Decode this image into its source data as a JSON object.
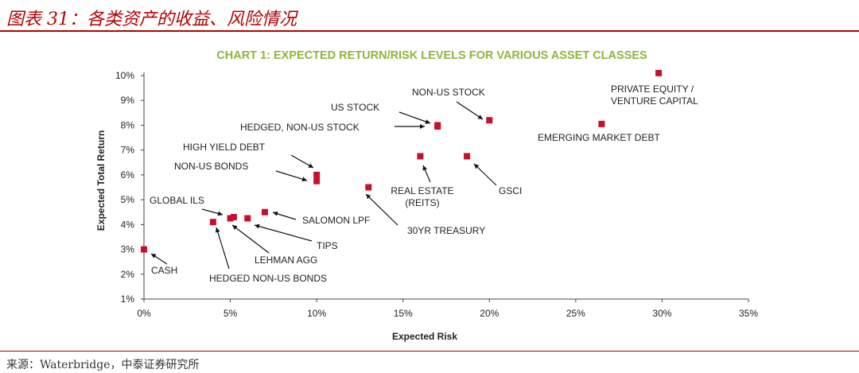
{
  "header": {
    "title": "图表 31：各类资产的收益、风险情况"
  },
  "footer": {
    "source": "来源：Waterbridge，中泰证券研究所"
  },
  "colors": {
    "accent_red": "#b30000",
    "title_green": "#8db63c",
    "marker": "#c8102e"
  },
  "chart_data": {
    "type": "scatter",
    "title": "CHART 1: EXPECTED RETURN/RISK LEVELS FOR VARIOUS ASSET CLASSES",
    "xlabel": "Expected Risk",
    "ylabel": "Expected Total Return",
    "xlim": [
      0,
      35
    ],
    "ylim": [
      1,
      10
    ],
    "x_ticks": [
      "0%",
      "5%",
      "10%",
      "15%",
      "20%",
      "25%",
      "30%",
      "35%"
    ],
    "y_ticks": [
      "1%",
      "2%",
      "3%",
      "4%",
      "5%",
      "6%",
      "7%",
      "8%",
      "9%",
      "10%"
    ],
    "grid": false,
    "points": [
      {
        "label": "CASH",
        "x": 0,
        "y": 3.0
      },
      {
        "label": "GLOBAL ILS",
        "x": 4.0,
        "y": 4.1
      },
      {
        "label": "HEDGED NON-US BONDS",
        "x": 5.0,
        "y": 4.25
      },
      {
        "label": "LEHMAN AGG",
        "x": 5.2,
        "y": 4.3
      },
      {
        "label": "TIPS",
        "x": 6.0,
        "y": 4.25
      },
      {
        "label": "SALOMON LPF",
        "x": 7.0,
        "y": 4.5
      },
      {
        "label": "NON-US BONDS",
        "x": 10.0,
        "y": 5.75
      },
      {
        "label": "HIGH YIELD DEBT",
        "x": 10.0,
        "y": 6.0
      },
      {
        "label": "30YR TREASURY",
        "x": 13.0,
        "y": 5.5
      },
      {
        "label": "REAL ESTATE (REITS)",
        "x": 16.0,
        "y": 6.75
      },
      {
        "label": "HEDGED, NON-US STOCK",
        "x": 17.0,
        "y": 7.95
      },
      {
        "label": "US STOCK",
        "x": 17.0,
        "y": 8.0
      },
      {
        "label": "GSCI",
        "x": 18.7,
        "y": 6.75
      },
      {
        "label": "NON-US STOCK",
        "x": 20.0,
        "y": 8.2
      },
      {
        "label": "EMERGING MARKET DEBT",
        "x": 26.5,
        "y": 8.05
      },
      {
        "label": "PRIVATE EQUITY / VENTURE CAPITAL",
        "x": 29.8,
        "y": 10.1
      }
    ]
  }
}
